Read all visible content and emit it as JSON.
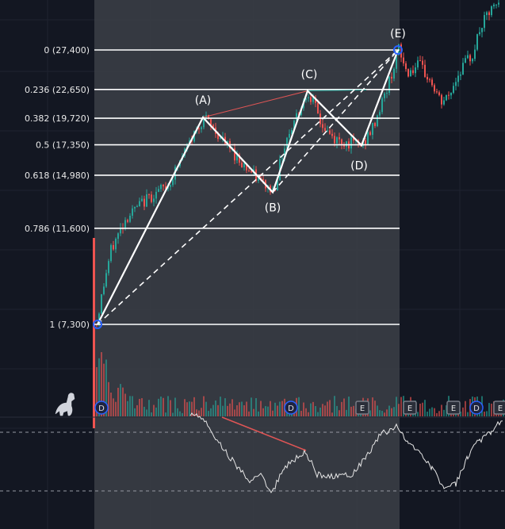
{
  "chart_data": {
    "type": "candlestick",
    "fib_levels": [
      {
        "label": "0 (27,400)",
        "price": 27400
      },
      {
        "label": "0.236 (22,650)",
        "price": 22650
      },
      {
        "label": "0.382 (19,720)",
        "price": 19720
      },
      {
        "label": "0.5 (17,350)",
        "price": 17350
      },
      {
        "label": "0.618 (14,980)",
        "price": 14980
      },
      {
        "label": "0.786 (11,600)",
        "price": 11600
      },
      {
        "label": "1 (7,300)",
        "price": 7300
      }
    ],
    "wave_points": [
      {
        "label": "",
        "price": 7300
      },
      {
        "label": "(A)",
        "price": 19800
      },
      {
        "label": "(B)",
        "price": 13800
      },
      {
        "label": "(C)",
        "price": 22500
      },
      {
        "label": "(D)",
        "price": 17300
      },
      {
        "label": "(E)",
        "price": 27400
      }
    ],
    "event_badges": [
      "D",
      "D",
      "E",
      "E",
      "E",
      "D",
      "E"
    ],
    "colors": {
      "background": "#131722",
      "highlight_zone": "#3c3f47",
      "up_candle": "#26a69a",
      "down_candle": "#ef5350",
      "fib_line": "#ffffff",
      "badge_dividend": "#2962ff",
      "badge_earnings": "#787b86"
    },
    "price_axis": {
      "min": 7300,
      "max": 27400
    }
  }
}
